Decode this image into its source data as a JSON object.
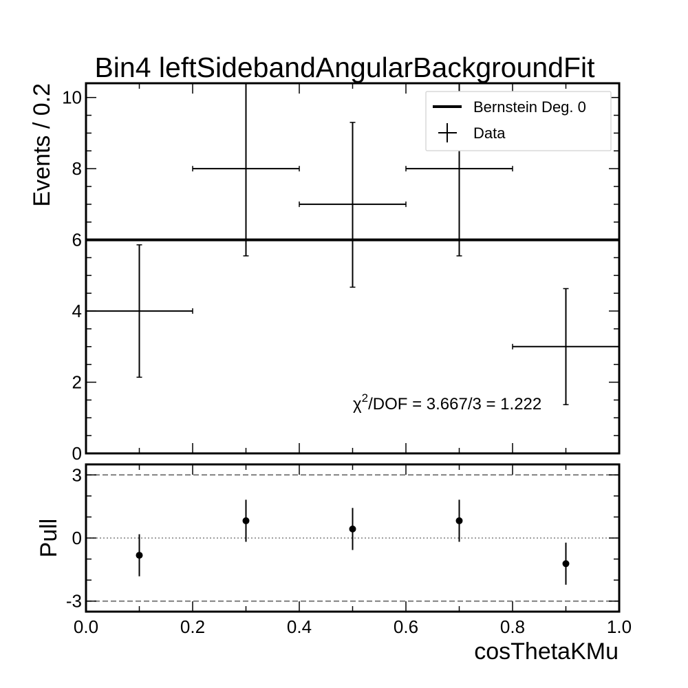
{
  "chart_data": [
    {
      "type": "scatter",
      "panel": "main",
      "title": "Bin4 leftSidebandAngularBackgroundFit",
      "ylabel": "Events / 0.2",
      "xlim": [
        0.0,
        1.0
      ],
      "ylim": [
        0,
        10.4
      ],
      "yticks": [
        0,
        2,
        4,
        6,
        8,
        10
      ],
      "ytick_labels": [
        "0",
        "2",
        "4",
        "6",
        "8",
        "10"
      ],
      "legend": {
        "position": "top-right",
        "entries": [
          {
            "label": "Bernstein Deg. 0",
            "style": "line"
          },
          {
            "label": "Data",
            "style": "errorbar"
          }
        ]
      },
      "fit_line": {
        "name": "Bernstein Deg. 0",
        "value": 6.0
      },
      "series": [
        {
          "name": "Data",
          "x": [
            0.1,
            0.3,
            0.5,
            0.7,
            0.9
          ],
          "y": [
            4,
            8,
            7,
            8,
            3
          ],
          "x_err": [
            0.1,
            0.1,
            0.1,
            0.1,
            0.1
          ],
          "y_err_low": [
            1.86,
            2.45,
            2.33,
            2.45,
            1.63
          ],
          "y_err_high": [
            1.86,
            2.6,
            2.3,
            2.6,
            1.63
          ]
        }
      ],
      "annotation": {
        "chi_prefix": "χ",
        "chi_sup": "2",
        "text": "/DOF = 3.667/3 = 1.222"
      }
    },
    {
      "type": "scatter",
      "panel": "pull",
      "ylabel": "Pull",
      "xlabel": "cosThetaKMu",
      "xlim": [
        0.0,
        1.0
      ],
      "ylim": [
        -3.5,
        3.5
      ],
      "yticks": [
        -3,
        0,
        3
      ],
      "ytick_labels": [
        "-3",
        "0",
        "3"
      ],
      "xticks": [
        0.0,
        0.2,
        0.4,
        0.6,
        0.8,
        1.0
      ],
      "xtick_labels": [
        "0.0",
        "0.2",
        "0.4",
        "0.6",
        "0.8",
        "1.0"
      ],
      "reference_lines": [
        {
          "y": 3,
          "style": "dashed"
        },
        {
          "y": 0,
          "style": "dotted"
        },
        {
          "y": -3,
          "style": "dashed"
        }
      ],
      "series": [
        {
          "name": "Pull",
          "x": [
            0.1,
            0.3,
            0.5,
            0.7,
            0.9
          ],
          "y": [
            -0.82,
            0.82,
            0.43,
            0.82,
            -1.22
          ],
          "y_err": [
            1.0,
            1.0,
            1.0,
            1.0,
            1.0
          ]
        }
      ]
    }
  ]
}
